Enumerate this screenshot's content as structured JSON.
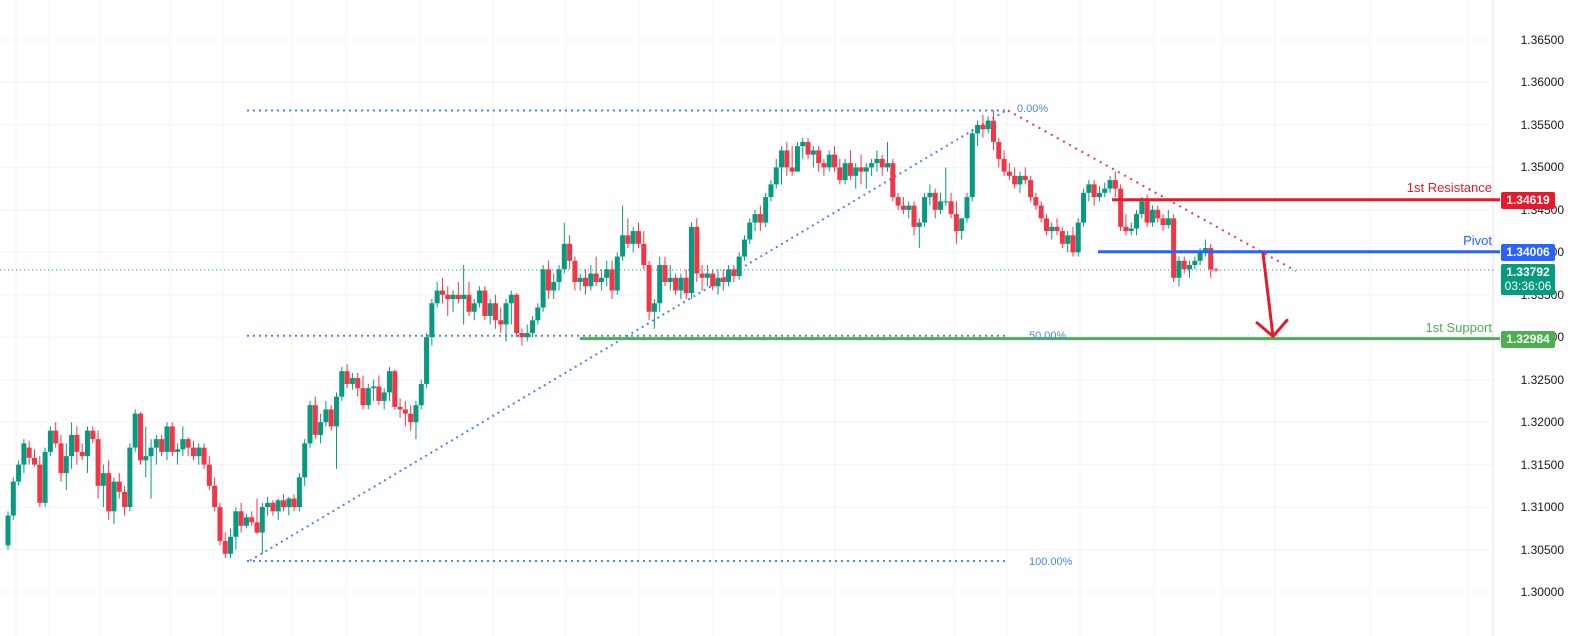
{
  "chart_data": {
    "type": "candlestick",
    "title": "",
    "xlabel": "",
    "ylabel": "",
    "ylim": [
      1.2985,
      1.369
    ],
    "grid": true,
    "price_axis_position": "right",
    "y_ticks": [
      "1.36500",
      "1.36000",
      "1.35500",
      "1.35000",
      "1.34500",
      "1.34000",
      "1.33500",
      "1.33000",
      "1.32500",
      "1.32000",
      "1.31500",
      "1.31000",
      "1.30500",
      "1.30000"
    ],
    "current_price": "1.33792",
    "countdown": "03:36:06",
    "levels": [
      {
        "name": "1st Resistance",
        "value": "1.34619",
        "color": "#e8192c"
      },
      {
        "name": "Pivot",
        "value": "1.34006",
        "color": "#2962ff"
      },
      {
        "name": "1st Support",
        "value": "1.32984",
        "color": "#4caf50"
      }
    ],
    "fibonacci": [
      {
        "label": "0.00%",
        "price": 1.3567
      },
      {
        "label": "50.00%",
        "price": 1.33017
      },
      {
        "label": "100.00%",
        "price": 1.30365
      }
    ],
    "annotations": [
      "Ascending dotted trendline from swing low ~1.3037 to swing high ~1.3567",
      "Descending dotted red trendline from swing high ~1.3567",
      "Red arrow projecting down from Pivot toward 1st Support"
    ],
    "candles_ohlc": [
      [
        1.3055,
        1.3095,
        1.305,
        1.309
      ],
      [
        1.309,
        1.3135,
        1.3085,
        1.313
      ],
      [
        1.313,
        1.3155,
        1.3125,
        1.315
      ],
      [
        1.315,
        1.318,
        1.314,
        1.3175
      ],
      [
        1.317,
        1.3178,
        1.315,
        1.3158
      ],
      [
        1.3158,
        1.3168,
        1.3148,
        1.315
      ],
      [
        1.315,
        1.316,
        1.31,
        1.3105
      ],
      [
        1.3105,
        1.317,
        1.31,
        1.3165
      ],
      [
        1.3165,
        1.3195,
        1.316,
        1.319
      ],
      [
        1.319,
        1.32,
        1.317,
        1.3175
      ],
      [
        1.3175,
        1.3185,
        1.313,
        1.314
      ],
      [
        1.314,
        1.3175,
        1.312,
        1.316
      ],
      [
        1.316,
        1.32,
        1.3145,
        1.3185
      ],
      [
        1.3185,
        1.3195,
        1.315,
        1.3165
      ],
      [
        1.3165,
        1.3175,
        1.3155,
        1.316
      ],
      [
        1.316,
        1.3195,
        1.314,
        1.319
      ],
      [
        1.319,
        1.3195,
        1.3175,
        1.318
      ],
      [
        1.318,
        1.319,
        1.311,
        1.3125
      ],
      [
        1.3125,
        1.315,
        1.31,
        1.314
      ],
      [
        1.314,
        1.3155,
        1.3085,
        1.3095
      ],
      [
        1.3095,
        1.3135,
        1.308,
        1.313
      ],
      [
        1.313,
        1.314,
        1.311,
        1.3118
      ],
      [
        1.3118,
        1.3125,
        1.309,
        1.31
      ],
      [
        1.31,
        1.3175,
        1.3095,
        1.317
      ],
      [
        1.317,
        1.3215,
        1.3165,
        1.321
      ],
      [
        1.321,
        1.3212,
        1.315,
        1.3155
      ],
      [
        1.3155,
        1.3195,
        1.3135,
        1.316
      ],
      [
        1.316,
        1.318,
        1.311,
        1.317
      ],
      [
        1.317,
        1.3185,
        1.315,
        1.318
      ],
      [
        1.318,
        1.3185,
        1.316,
        1.3165
      ],
      [
        1.3165,
        1.32,
        1.3155,
        1.3195
      ],
      [
        1.3195,
        1.32,
        1.316,
        1.3165
      ],
      [
        1.3165,
        1.3175,
        1.315,
        1.3168
      ],
      [
        1.3168,
        1.3195,
        1.316,
        1.318
      ],
      [
        1.318,
        1.3182,
        1.316,
        1.317
      ],
      [
        1.317,
        1.3178,
        1.3155,
        1.316
      ],
      [
        1.316,
        1.3175,
        1.315,
        1.317
      ],
      [
        1.317,
        1.3175,
        1.3145,
        1.315
      ],
      [
        1.315,
        1.316,
        1.312,
        1.3125
      ],
      [
        1.3125,
        1.3135,
        1.3095,
        1.31
      ],
      [
        1.31,
        1.3105,
        1.3055,
        1.306
      ],
      [
        1.306,
        1.307,
        1.304,
        1.3045
      ],
      [
        1.3045,
        1.3075,
        1.304,
        1.3065
      ],
      [
        1.3065,
        1.31,
        1.305,
        1.3095
      ],
      [
        1.3095,
        1.3105,
        1.307,
        1.3078
      ],
      [
        1.3078,
        1.3092,
        1.3075,
        1.3088
      ],
      [
        1.3088,
        1.3095,
        1.3078,
        1.3082
      ],
      [
        1.3082,
        1.311,
        1.3068,
        1.307
      ],
      [
        1.307,
        1.3105,
        1.3045,
        1.31
      ],
      [
        1.31,
        1.3112,
        1.309,
        1.3105
      ],
      [
        1.3105,
        1.3108,
        1.309,
        1.3095
      ],
      [
        1.3095,
        1.311,
        1.3085,
        1.3108
      ],
      [
        1.3108,
        1.3115,
        1.3095,
        1.31
      ],
      [
        1.31,
        1.3112,
        1.309,
        1.311
      ],
      [
        1.311,
        1.3115,
        1.3095,
        1.31
      ],
      [
        1.31,
        1.314,
        1.3095,
        1.3135
      ],
      [
        1.3135,
        1.318,
        1.3125,
        1.3175
      ],
      [
        1.3175,
        1.3225,
        1.317,
        1.322
      ],
      [
        1.322,
        1.323,
        1.318,
        1.3185
      ],
      [
        1.3185,
        1.321,
        1.3175,
        1.32
      ],
      [
        1.32,
        1.3225,
        1.3195,
        1.3215
      ],
      [
        1.3215,
        1.322,
        1.319,
        1.3195
      ],
      [
        1.3195,
        1.3235,
        1.3145,
        1.323
      ],
      [
        1.323,
        1.3265,
        1.3225,
        1.326
      ],
      [
        1.326,
        1.3268,
        1.324,
        1.3245
      ],
      [
        1.3245,
        1.3258,
        1.3238,
        1.3252
      ],
      [
        1.3252,
        1.3258,
        1.323,
        1.324
      ],
      [
        1.324,
        1.3255,
        1.3215,
        1.322
      ],
      [
        1.322,
        1.3245,
        1.3215,
        1.324
      ],
      [
        1.324,
        1.325,
        1.3225,
        1.3242
      ],
      [
        1.3242,
        1.3255,
        1.322,
        1.3225
      ],
      [
        1.3225,
        1.324,
        1.3215,
        1.3235
      ],
      [
        1.3235,
        1.3265,
        1.3225,
        1.326
      ],
      [
        1.326,
        1.3262,
        1.3215,
        1.3218
      ],
      [
        1.3218,
        1.3228,
        1.3205,
        1.3215
      ],
      [
        1.3215,
        1.3225,
        1.3195,
        1.321
      ],
      [
        1.321,
        1.322,
        1.319,
        1.32
      ],
      [
        1.32,
        1.3225,
        1.318,
        1.322
      ],
      [
        1.322,
        1.325,
        1.3215,
        1.3245
      ],
      [
        1.3245,
        1.3305,
        1.324,
        1.33
      ],
      [
        1.33,
        1.3345,
        1.329,
        1.334
      ],
      [
        1.334,
        1.3365,
        1.3335,
        1.3355
      ],
      [
        1.3355,
        1.337,
        1.334,
        1.335
      ],
      [
        1.335,
        1.336,
        1.3325,
        1.3345
      ],
      [
        1.3345,
        1.3355,
        1.333,
        1.335
      ],
      [
        1.335,
        1.3365,
        1.334,
        1.3345
      ],
      [
        1.3345,
        1.3385,
        1.3315,
        1.335
      ],
      [
        1.335,
        1.3365,
        1.3325,
        1.333
      ],
      [
        1.333,
        1.3345,
        1.332,
        1.334
      ],
      [
        1.334,
        1.336,
        1.3335,
        1.3355
      ],
      [
        1.3355,
        1.336,
        1.332,
        1.3325
      ],
      [
        1.3325,
        1.3345,
        1.3315,
        1.334
      ],
      [
        1.334,
        1.335,
        1.331,
        1.332
      ],
      [
        1.332,
        1.3335,
        1.3305,
        1.3315
      ],
      [
        1.3315,
        1.3345,
        1.3295,
        1.334
      ],
      [
        1.334,
        1.3355,
        1.3315,
        1.335
      ],
      [
        1.335,
        1.3352,
        1.33,
        1.3305
      ],
      [
        1.3305,
        1.331,
        1.329,
        1.33
      ],
      [
        1.33,
        1.3315,
        1.3295,
        1.3305
      ],
      [
        1.3305,
        1.3325,
        1.33,
        1.332
      ],
      [
        1.332,
        1.334,
        1.3315,
        1.3335
      ],
      [
        1.3335,
        1.3385,
        1.333,
        1.338
      ],
      [
        1.338,
        1.339,
        1.3345,
        1.3355
      ],
      [
        1.3355,
        1.3375,
        1.3345,
        1.3365
      ],
      [
        1.3365,
        1.3385,
        1.3355,
        1.338
      ],
      [
        1.338,
        1.3435,
        1.3375,
        1.341
      ],
      [
        1.341,
        1.342,
        1.338,
        1.339
      ],
      [
        1.339,
        1.3395,
        1.3355,
        1.3365
      ],
      [
        1.3365,
        1.3375,
        1.3355,
        1.337
      ],
      [
        1.337,
        1.338,
        1.335,
        1.336
      ],
      [
        1.336,
        1.3385,
        1.3355,
        1.3375
      ],
      [
        1.3375,
        1.3395,
        1.336,
        1.3365
      ],
      [
        1.3365,
        1.338,
        1.3355,
        1.337
      ],
      [
        1.337,
        1.339,
        1.336,
        1.338
      ],
      [
        1.338,
        1.339,
        1.3345,
        1.3355
      ],
      [
        1.3355,
        1.34,
        1.335,
        1.3395
      ],
      [
        1.3395,
        1.3455,
        1.339,
        1.342
      ],
      [
        1.342,
        1.344,
        1.3405,
        1.341
      ],
      [
        1.341,
        1.343,
        1.34,
        1.3425
      ],
      [
        1.3425,
        1.3435,
        1.3405,
        1.341
      ],
      [
        1.341,
        1.3425,
        1.338,
        1.3385
      ],
      [
        1.3385,
        1.339,
        1.332,
        1.333
      ],
      [
        1.333,
        1.3345,
        1.331,
        1.334
      ],
      [
        1.334,
        1.3395,
        1.333,
        1.3385
      ],
      [
        1.3385,
        1.3395,
        1.336,
        1.3365
      ],
      [
        1.3365,
        1.3385,
        1.3355,
        1.337
      ],
      [
        1.337,
        1.3375,
        1.335,
        1.3355
      ],
      [
        1.3355,
        1.3375,
        1.3345,
        1.337
      ],
      [
        1.337,
        1.338,
        1.3345,
        1.3352
      ],
      [
        1.3352,
        1.3435,
        1.3345,
        1.343
      ],
      [
        1.343,
        1.344,
        1.3365,
        1.3375
      ],
      [
        1.3375,
        1.3385,
        1.3355,
        1.337
      ],
      [
        1.337,
        1.3385,
        1.336,
        1.3375
      ],
      [
        1.3375,
        1.338,
        1.3355,
        1.336
      ],
      [
        1.336,
        1.338,
        1.335,
        1.337
      ],
      [
        1.337,
        1.338,
        1.3355,
        1.3365
      ],
      [
        1.3365,
        1.3385,
        1.336,
        1.338
      ],
      [
        1.338,
        1.3385,
        1.3365,
        1.3372
      ],
      [
        1.3372,
        1.34,
        1.3368,
        1.3395
      ],
      [
        1.3395,
        1.342,
        1.339,
        1.3415
      ],
      [
        1.3415,
        1.344,
        1.341,
        1.3435
      ],
      [
        1.3435,
        1.345,
        1.3425,
        1.3445
      ],
      [
        1.3445,
        1.3455,
        1.3425,
        1.3435
      ],
      [
        1.3435,
        1.347,
        1.343,
        1.3465
      ],
      [
        1.3465,
        1.3485,
        1.346,
        1.348
      ],
      [
        1.348,
        1.351,
        1.3475,
        1.35
      ],
      [
        1.35,
        1.3525,
        1.348,
        1.352
      ],
      [
        1.352,
        1.353,
        1.349,
        1.35
      ],
      [
        1.35,
        1.3525,
        1.349,
        1.3495
      ],
      [
        1.3495,
        1.353,
        1.3495,
        1.3525
      ],
      [
        1.3525,
        1.3535,
        1.351,
        1.353
      ],
      [
        1.353,
        1.3535,
        1.351,
        1.3515
      ],
      [
        1.3515,
        1.3525,
        1.35,
        1.352
      ],
      [
        1.352,
        1.3525,
        1.3495,
        1.3505
      ],
      [
        1.3505,
        1.351,
        1.349,
        1.35
      ],
      [
        1.35,
        1.352,
        1.3495,
        1.3515
      ],
      [
        1.3515,
        1.3525,
        1.3495,
        1.35
      ],
      [
        1.35,
        1.351,
        1.348,
        1.3485
      ],
      [
        1.3485,
        1.351,
        1.348,
        1.3505
      ],
      [
        1.3505,
        1.352,
        1.3485,
        1.349
      ],
      [
        1.349,
        1.3505,
        1.3475,
        1.35
      ],
      [
        1.35,
        1.3515,
        1.348,
        1.3495
      ],
      [
        1.3495,
        1.3505,
        1.3475,
        1.35
      ],
      [
        1.35,
        1.351,
        1.349,
        1.3505
      ],
      [
        1.3505,
        1.352,
        1.3495,
        1.351
      ],
      [
        1.351,
        1.3515,
        1.349,
        1.35
      ],
      [
        1.35,
        1.353,
        1.3495,
        1.3505
      ],
      [
        1.3505,
        1.351,
        1.346,
        1.3465
      ],
      [
        1.3465,
        1.347,
        1.345,
        1.3455
      ],
      [
        1.3455,
        1.3465,
        1.3445,
        1.345
      ],
      [
        1.345,
        1.346,
        1.344,
        1.3455
      ],
      [
        1.3455,
        1.346,
        1.342,
        1.343
      ],
      [
        1.343,
        1.344,
        1.3405,
        1.3435
      ],
      [
        1.3435,
        1.347,
        1.343,
        1.3465
      ],
      [
        1.3465,
        1.348,
        1.3455,
        1.347
      ],
      [
        1.347,
        1.3475,
        1.344,
        1.345
      ],
      [
        1.345,
        1.347,
        1.3445,
        1.346
      ],
      [
        1.346,
        1.35,
        1.3455,
        1.346
      ],
      [
        1.346,
        1.347,
        1.344,
        1.3445
      ],
      [
        1.3445,
        1.346,
        1.341,
        1.3425
      ],
      [
        1.3425,
        1.344,
        1.3415,
        1.344
      ],
      [
        1.344,
        1.347,
        1.3435,
        1.3465
      ],
      [
        1.3465,
        1.3545,
        1.346,
        1.354
      ],
      [
        1.354,
        1.3555,
        1.3525,
        1.355
      ],
      [
        1.355,
        1.3562,
        1.3535,
        1.3545
      ],
      [
        1.3545,
        1.356,
        1.354,
        1.3555
      ],
      [
        1.3555,
        1.3567,
        1.352,
        1.353
      ],
      [
        1.353,
        1.3535,
        1.35,
        1.351
      ],
      [
        1.351,
        1.352,
        1.349,
        1.3495
      ],
      [
        1.3495,
        1.3505,
        1.3485,
        1.349
      ],
      [
        1.349,
        1.35,
        1.3475,
        1.348
      ],
      [
        1.348,
        1.3495,
        1.347,
        1.349
      ],
      [
        1.349,
        1.35,
        1.348,
        1.3485
      ],
      [
        1.3485,
        1.349,
        1.346,
        1.3465
      ],
      [
        1.3465,
        1.347,
        1.345,
        1.3455
      ],
      [
        1.3455,
        1.346,
        1.3435,
        1.344
      ],
      [
        1.344,
        1.3445,
        1.342,
        1.3425
      ],
      [
        1.3425,
        1.3435,
        1.3415,
        1.343
      ],
      [
        1.343,
        1.344,
        1.342,
        1.3425
      ],
      [
        1.3425,
        1.343,
        1.3405,
        1.341
      ],
      [
        1.341,
        1.3425,
        1.34,
        1.342
      ],
      [
        1.342,
        1.343,
        1.3395,
        1.34
      ],
      [
        1.34,
        1.344,
        1.3395,
        1.3435
      ],
      [
        1.3435,
        1.3475,
        1.343,
        1.347
      ],
      [
        1.347,
        1.3485,
        1.346,
        1.348
      ],
      [
        1.348,
        1.3485,
        1.3455,
        1.3465
      ],
      [
        1.3465,
        1.3478,
        1.346,
        1.347
      ],
      [
        1.347,
        1.3482,
        1.3465,
        1.3475
      ],
      [
        1.3475,
        1.349,
        1.347,
        1.3485
      ],
      [
        1.3485,
        1.3495,
        1.3465,
        1.3475
      ],
      [
        1.3475,
        1.348,
        1.3425,
        1.343
      ],
      [
        1.343,
        1.3445,
        1.342,
        1.3425
      ],
      [
        1.3425,
        1.3435,
        1.342,
        1.3428
      ],
      [
        1.3428,
        1.345,
        1.342,
        1.3445
      ],
      [
        1.3445,
        1.3465,
        1.344,
        1.346
      ],
      [
        1.346,
        1.3468,
        1.343,
        1.3435
      ],
      [
        1.3435,
        1.3455,
        1.343,
        1.345
      ],
      [
        1.345,
        1.3455,
        1.3435,
        1.344
      ],
      [
        1.344,
        1.3445,
        1.3425,
        1.3432
      ],
      [
        1.3432,
        1.345,
        1.3428,
        1.344
      ],
      [
        1.344,
        1.3445,
        1.3365,
        1.337
      ],
      [
        1.337,
        1.3395,
        1.336,
        1.339
      ],
      [
        1.339,
        1.3395,
        1.3375,
        1.338
      ],
      [
        1.338,
        1.339,
        1.337,
        1.3385
      ],
      [
        1.3385,
        1.3395,
        1.338,
        1.339
      ],
      [
        1.339,
        1.3405,
        1.3385,
        1.34
      ],
      [
        1.34,
        1.3415,
        1.3395,
        1.3405
      ],
      [
        1.3405,
        1.341,
        1.337,
        1.338
      ],
      [
        1.338,
        1.3382,
        1.3377,
        1.3379
      ]
    ]
  },
  "ui": {
    "colors": {
      "up": "#089981",
      "down": "#f23645",
      "grid": "#f0f3fa",
      "fib": "#4a84f0",
      "trend_down": "#f23645",
      "current_line": "#089981"
    }
  }
}
